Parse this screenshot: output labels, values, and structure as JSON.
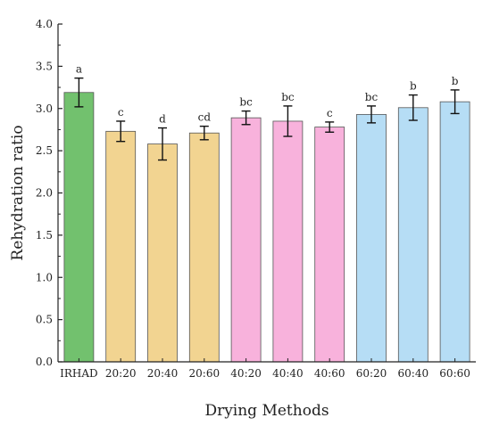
{
  "chart_data": {
    "type": "bar",
    "title": "",
    "xlabel": "Drying Methods",
    "ylabel": "Rehydration ratio",
    "ylim": [
      0,
      4.0
    ],
    "yticks": [
      "0.0",
      "0.5",
      "1.0",
      "1.5",
      "2.0",
      "2.5",
      "3.0",
      "3.5",
      "4.0"
    ],
    "grid": false,
    "legend": "none",
    "categories": [
      "IRHAD",
      "20:20",
      "20:40",
      "20:60",
      "40:20",
      "40:40",
      "40:60",
      "60:20",
      "60:40",
      "60:60"
    ],
    "values": [
      3.19,
      2.73,
      2.58,
      2.71,
      2.89,
      2.85,
      2.78,
      2.93,
      3.01,
      3.08
    ],
    "errors": [
      0.17,
      0.12,
      0.19,
      0.08,
      0.08,
      0.18,
      0.06,
      0.1,
      0.15,
      0.14
    ],
    "significance": [
      "a",
      "c",
      "d",
      "cd",
      "bc",
      "bc",
      "c",
      "bc",
      "b",
      "b"
    ],
    "colors": [
      "#72c16e",
      "#f2d491",
      "#f2d491",
      "#f2d491",
      "#f8b2dc",
      "#f8b2dc",
      "#f8b2dc",
      "#b6ddf5",
      "#b6ddf5",
      "#b6ddf5"
    ]
  }
}
